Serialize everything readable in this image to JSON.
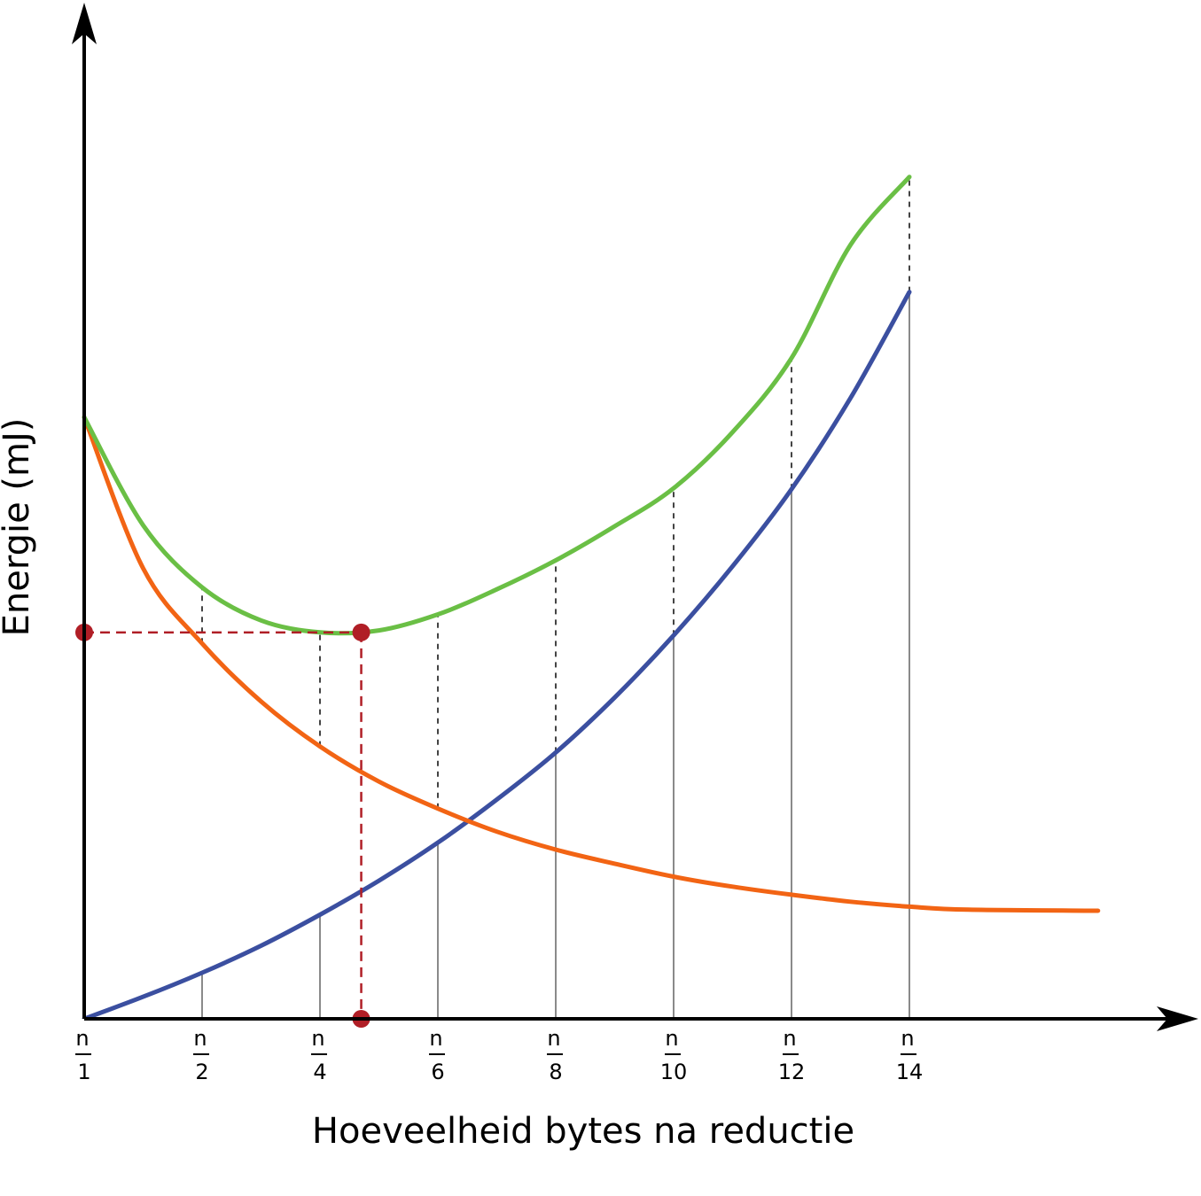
{
  "chart_data": {
    "type": "line",
    "xlabel": "Hoeveelheid bytes na reductie",
    "ylabel": "Energie (mJ)",
    "ticks": [
      {
        "num": "n",
        "den": "1",
        "x": 1
      },
      {
        "num": "n",
        "den": "2",
        "x": 2
      },
      {
        "num": "n",
        "den": "4",
        "x": 3
      },
      {
        "num": "n",
        "den": "6",
        "x": 4
      },
      {
        "num": "n",
        "den": "8",
        "x": 5
      },
      {
        "num": "n",
        "den": "10",
        "x": 6
      },
      {
        "num": "n",
        "den": "12",
        "x": 7
      },
      {
        "num": "n",
        "den": "14",
        "x": 8
      }
    ],
    "xlim": [
      1,
      10
    ],
    "ylim": [
      0,
      8.7
    ],
    "series": [
      {
        "color": "#3b4fa0",
        "x": [
          1,
          1.5,
          2,
          2.5,
          3,
          3.5,
          4,
          4.5,
          5,
          5.5,
          6,
          6.5,
          7,
          7.5,
          8
        ],
        "y": [
          0,
          0.22,
          0.46,
          0.73,
          1.04,
          1.38,
          1.76,
          2.19,
          2.66,
          3.21,
          3.83,
          4.52,
          5.29,
          6.2,
          7.26
        ]
      },
      {
        "color": "#f26414",
        "x": [
          1,
          1.5,
          2,
          2.5,
          3,
          3.5,
          4,
          4.5,
          5,
          5.5,
          6,
          6.5,
          7,
          7.5,
          8,
          8.5,
          9.6
        ],
        "y": [
          6.01,
          4.5,
          3.75,
          3.17,
          2.72,
          2.37,
          2.1,
          1.87,
          1.69,
          1.55,
          1.42,
          1.32,
          1.24,
          1.17,
          1.12,
          1.09,
          1.08
        ]
      },
      {
        "color": "#6abf45",
        "x": [
          1,
          1.5,
          2,
          2.5,
          3,
          3.5,
          4,
          4.5,
          5,
          5.5,
          6,
          6.5,
          7,
          7.5,
          8
        ],
        "y": [
          6.01,
          4.93,
          4.31,
          3.98,
          3.86,
          3.88,
          4.04,
          4.29,
          4.58,
          4.92,
          5.3,
          5.86,
          6.6,
          7.73,
          8.41
        ]
      }
    ],
    "optimum": {
      "x": 3.35,
      "y": 3.86,
      "color": "#b01e26"
    },
    "grid": false,
    "legend": "none"
  }
}
